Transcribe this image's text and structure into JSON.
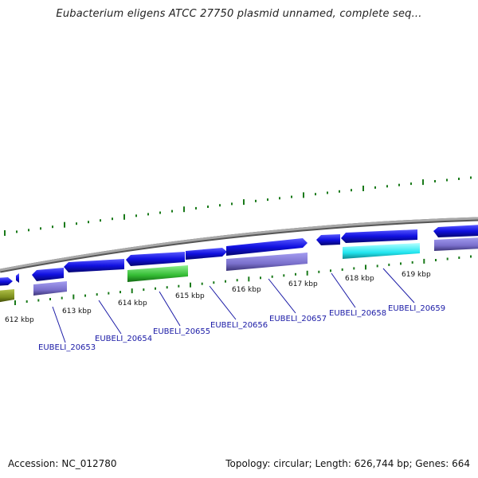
{
  "title": "Eubacterium eligens ATCC 27750 plasmid unnamed, complete seq...",
  "footer": {
    "accession_label": "Accession:",
    "accession": "NC_012780",
    "topology_label": "Topology:",
    "topology": "circular",
    "length_label": "Length:",
    "length": "626,744 bp",
    "genes_label": "Genes:",
    "genes": "664"
  },
  "colors": {
    "gene_blue": "#1010e0",
    "gene_purple": "#7a70cc",
    "gene_green": "#33bb33",
    "gene_cyan": "#22e6f0",
    "gene_olive": "#7a8c1c",
    "backbone": "#8c8c8c",
    "tick_green": "#1a7a1a",
    "label_blue": "#1a1aa6"
  },
  "ticks": [
    {
      "label": "612 kbp"
    },
    {
      "label": "613 kbp"
    },
    {
      "label": "614 kbp"
    },
    {
      "label": "615 kbp"
    },
    {
      "label": "616 kbp"
    },
    {
      "label": "617 kbp"
    },
    {
      "label": "618 kbp"
    },
    {
      "label": "619 kbp"
    }
  ],
  "gene_labels": [
    {
      "text": "EUBELI_20653"
    },
    {
      "text": "EUBELI_20654"
    },
    {
      "text": "EUBELI_20655"
    },
    {
      "text": "EUBELI_20656"
    },
    {
      "text": "EUBELI_20657"
    },
    {
      "text": "EUBELI_20658"
    },
    {
      "text": "EUBELI_20659"
    }
  ]
}
